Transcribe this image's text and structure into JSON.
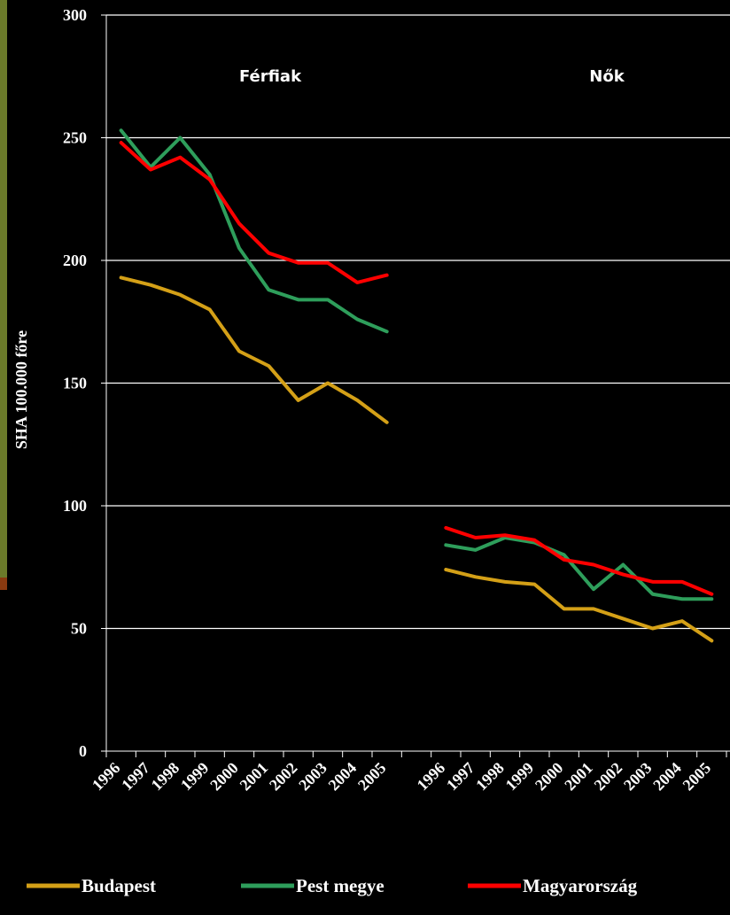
{
  "chart_data": {
    "type": "line",
    "y_label": "SHA 100.000 főre",
    "annotations": [
      "Férfiak",
      "Nők"
    ],
    "categories": [
      "1996",
      "1997",
      "1998",
      "1999",
      "2000",
      "2001",
      "2002",
      "2003",
      "2004",
      "2005",
      null,
      "1996",
      "1997",
      "1998",
      "1999",
      "2000",
      "2001",
      "2002",
      "2003",
      "2004",
      "2005"
    ],
    "series": [
      {
        "name": "Budapest",
        "color": "#d4a017",
        "values": [
          193,
          190,
          186,
          180,
          163,
          157,
          143,
          150,
          143,
          134,
          null,
          74,
          71,
          69,
          68,
          58,
          58,
          54,
          50,
          53,
          45
        ]
      },
      {
        "name": "Pest megye",
        "color": "#2e9e5b",
        "values": [
          253,
          238,
          250,
          235,
          205,
          188,
          184,
          184,
          176,
          171,
          null,
          84,
          82,
          87,
          85,
          80,
          66,
          76,
          64,
          62,
          62
        ]
      },
      {
        "name": "Magyarország",
        "color": "#ff0000",
        "values": [
          248,
          237,
          242,
          233,
          215,
          203,
          199,
          199,
          191,
          194,
          null,
          91,
          87,
          88,
          86,
          78,
          76,
          72,
          69,
          69,
          64
        ]
      }
    ],
    "ylim": [
      0,
      300
    ],
    "yticks": [
      0,
      50,
      100,
      150,
      200,
      250,
      300
    ],
    "grid": true
  }
}
